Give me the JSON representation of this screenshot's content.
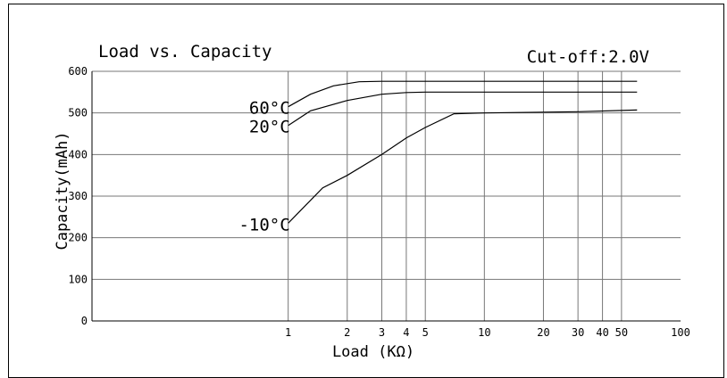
{
  "chart_data": {
    "type": "line",
    "title": "Load vs. Capacity",
    "annotation": "Cut-off:2.0V",
    "xlabel": "Load (KΩ)",
    "ylabel": "Capacity(mAh)",
    "xscale": "log",
    "xlim": [
      0.1,
      100
    ],
    "ylim": [
      0,
      600
    ],
    "grid": true,
    "x_ticks": [
      {
        "value": 1,
        "label": "1"
      },
      {
        "value": 2,
        "label": "2"
      },
      {
        "value": 3,
        "label": "3"
      },
      {
        "value": 4,
        "label": "4"
      },
      {
        "value": 5,
        "label": "5"
      },
      {
        "value": 10,
        "label": "10"
      },
      {
        "value": 20,
        "label": "20"
      },
      {
        "value": 30,
        "label": "30"
      },
      {
        "value": 40,
        "label": "40"
      },
      {
        "value": 50,
        "label": "50"
      },
      {
        "value": 100,
        "label": "100"
      }
    ],
    "y_ticks": [
      {
        "value": 0,
        "label": "0"
      },
      {
        "value": 100,
        "label": "100"
      },
      {
        "value": 200,
        "label": "200"
      },
      {
        "value": 300,
        "label": "300"
      },
      {
        "value": 400,
        "label": "400"
      },
      {
        "value": 500,
        "label": "500"
      },
      {
        "value": 600,
        "label": "600"
      }
    ],
    "series": [
      {
        "name": "60°C",
        "x": [
          1,
          1.3,
          1.7,
          2.3,
          3,
          5,
          10,
          30,
          60
        ],
        "y": [
          515,
          545,
          565,
          575,
          576,
          576,
          576,
          576,
          576
        ]
      },
      {
        "name": "20°C",
        "x": [
          1,
          1.3,
          2,
          3,
          4,
          5,
          10,
          30,
          60
        ],
        "y": [
          470,
          505,
          530,
          545,
          549,
          550,
          550,
          550,
          550
        ]
      },
      {
        "name": "-10°C",
        "x": [
          1,
          1.5,
          2,
          3,
          4,
          5,
          7,
          10,
          30,
          60
        ],
        "y": [
          235,
          320,
          350,
          400,
          440,
          465,
          498,
          500,
          503,
          507
        ]
      }
    ]
  }
}
